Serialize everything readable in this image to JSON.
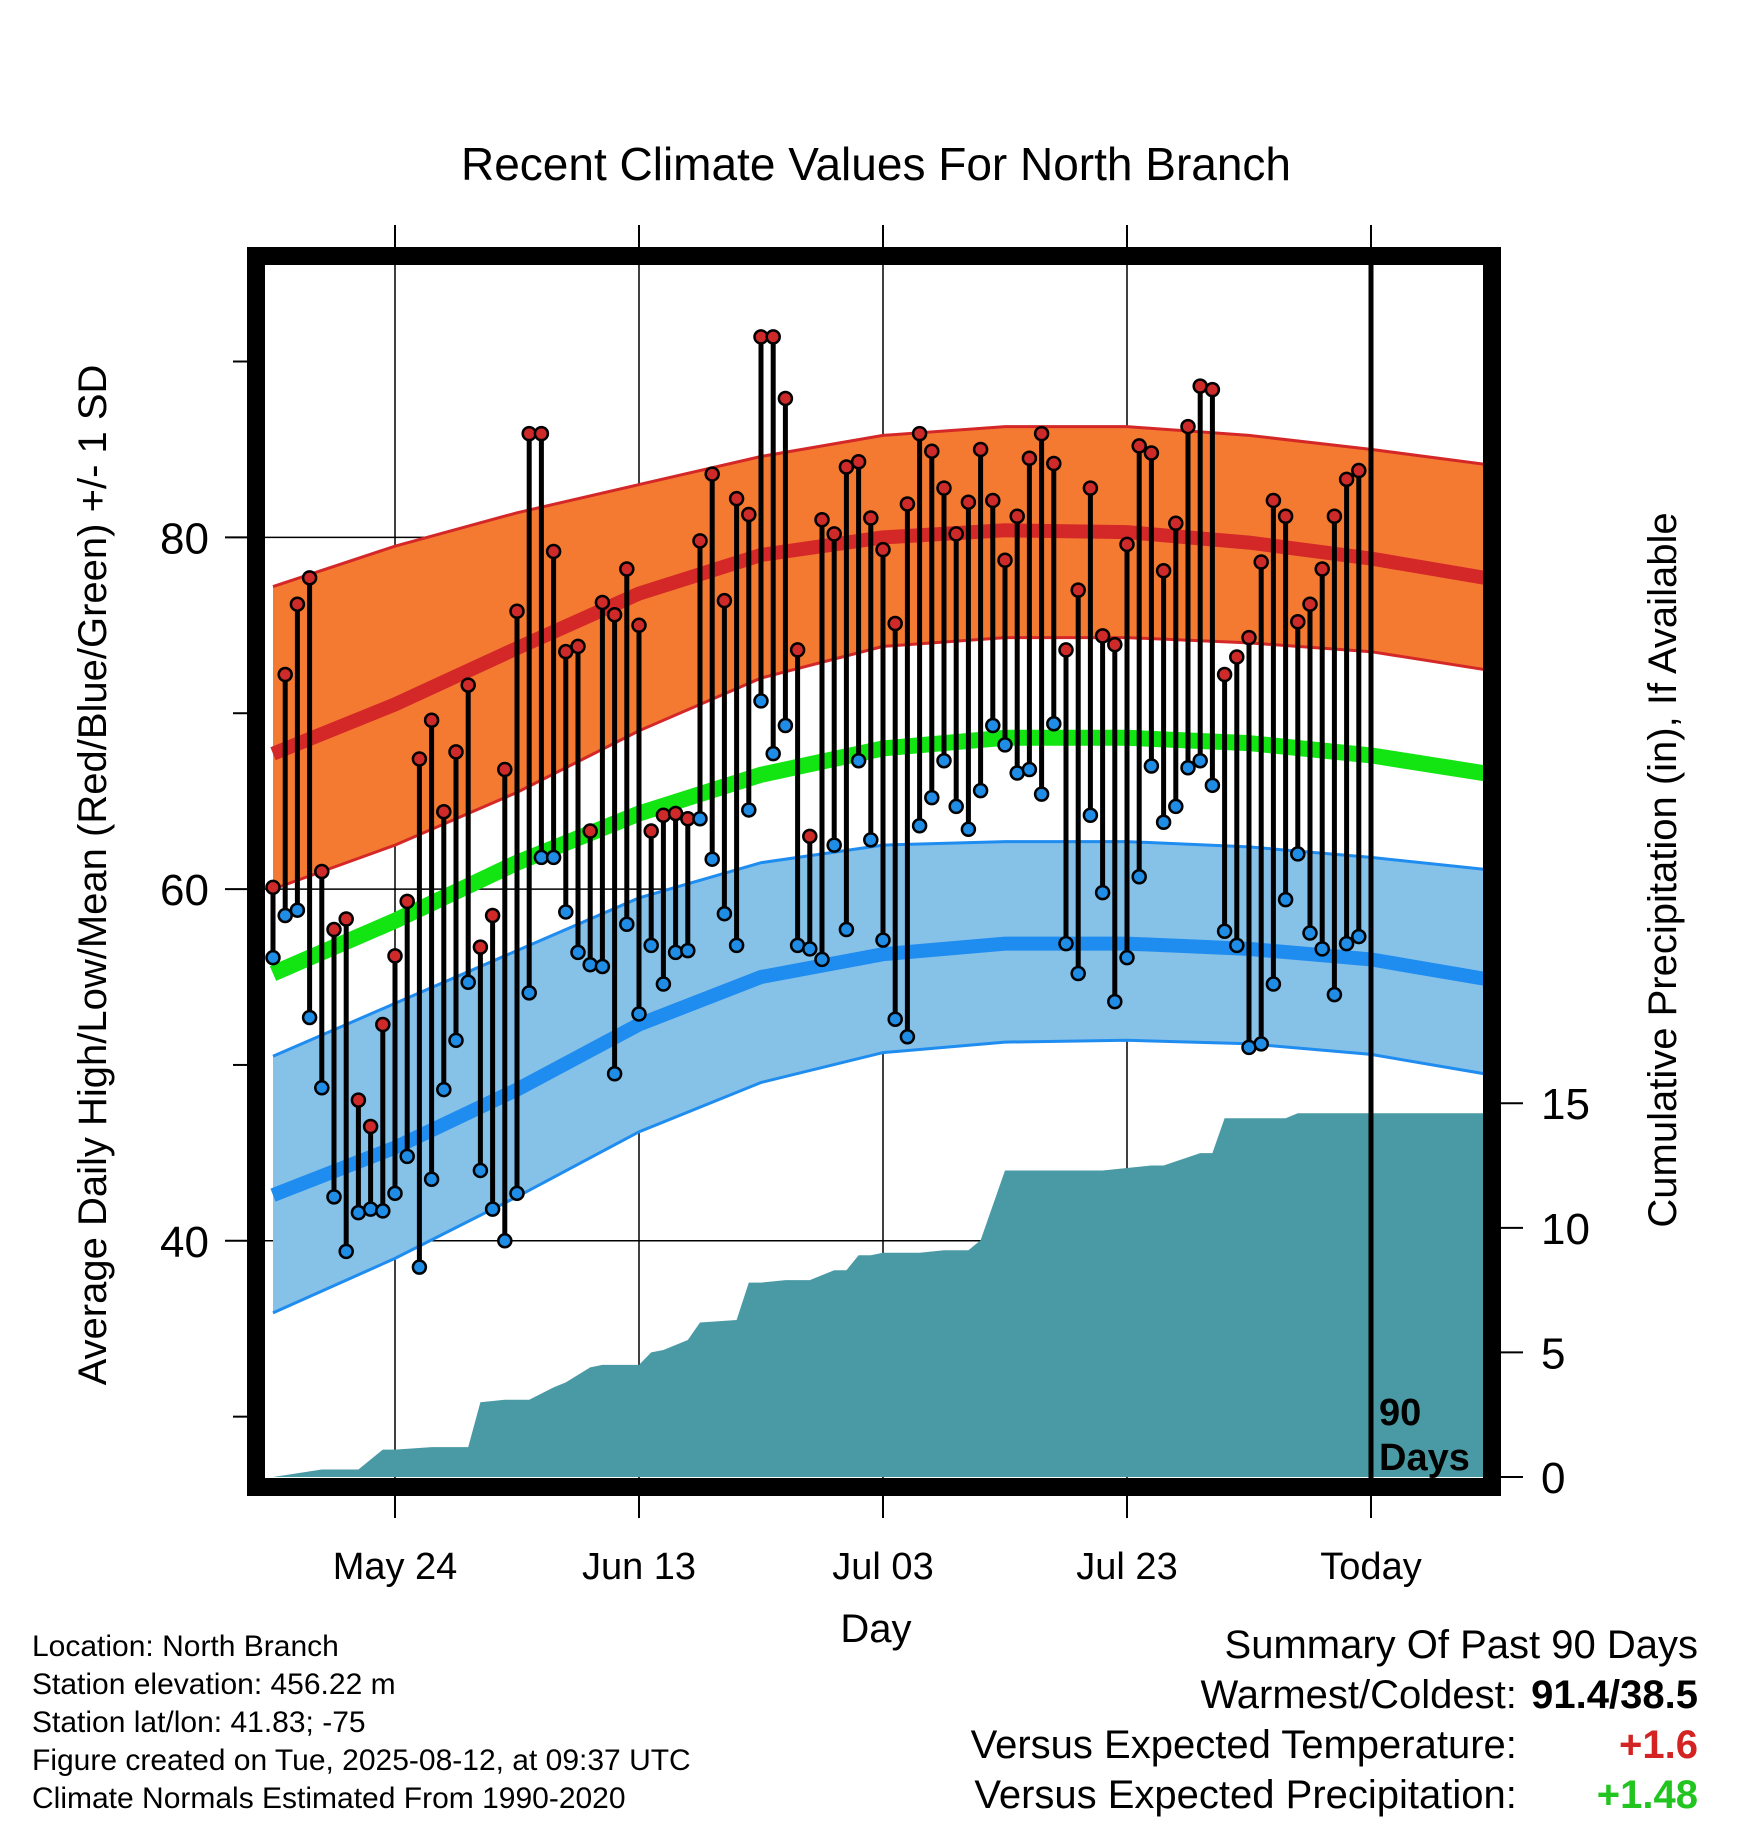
{
  "chart_data": {
    "type": "line",
    "title": "Recent Climate Values For North Branch",
    "xlabel": "Day",
    "ylabel": "Average Daily High/Low/Mean (Red/Blue/Green) +/- 1 SD",
    "y2label": "Cumulative Precipitation (in), If Available",
    "ylim": [
      26,
      96
    ],
    "y2lim": [
      -0.4,
      49
    ],
    "yticks": [
      "40",
      "60",
      "80"
    ],
    "y2ticks": [
      "0",
      "5",
      "10",
      "15"
    ],
    "xlim": [
      -10,
      91
    ],
    "xticks": [
      {
        "day": 0,
        "label": "May 24"
      },
      {
        "day": 20,
        "label": "Jun 13"
      },
      {
        "day": 40,
        "label": "Jul 03"
      },
      {
        "day": 60,
        "label": "Jul 23"
      },
      {
        "day": 80,
        "label": "Today"
      }
    ],
    "today_day": 80,
    "today_annotation": "90 Days",
    "grid": true,
    "colors": {
      "high_band": "#f47a32",
      "high_mean": "#d42828",
      "low_band": "#86c1e8",
      "low_mean": "#1f8cf0",
      "mean_line": "#12e512",
      "precip": "#4a9aa5",
      "high_marker": "#cf2a2a",
      "low_marker": "#1f8ce6"
    },
    "normals": {
      "x": [
        -10,
        0,
        10,
        20,
        30,
        40,
        50,
        60,
        70,
        80,
        91
      ],
      "high_mean": [
        67.7,
        70.5,
        73.7,
        76.8,
        79.0,
        80.0,
        80.4,
        80.3,
        79.7,
        78.8,
        77.5
      ],
      "high_upper": [
        77.2,
        79.5,
        81.4,
        83.0,
        84.6,
        85.8,
        86.3,
        86.3,
        85.8,
        85.0,
        84.0
      ],
      "high_lower": [
        60.0,
        62.5,
        65.5,
        69.0,
        72.0,
        73.8,
        74.3,
        74.3,
        74.0,
        73.5,
        72.3
      ],
      "mean_line": [
        55.2,
        58.2,
        61.5,
        64.3,
        66.5,
        68.0,
        68.6,
        68.6,
        68.3,
        67.6,
        66.4
      ],
      "low_mean": [
        42.6,
        45.3,
        48.6,
        52.3,
        55.0,
        56.3,
        56.9,
        56.9,
        56.6,
        56.0,
        54.7
      ],
      "low_upper": [
        50.5,
        53.5,
        56.5,
        59.5,
        61.5,
        62.5,
        62.7,
        62.7,
        62.4,
        61.8,
        61.0
      ],
      "low_lower": [
        35.9,
        39.0,
        42.5,
        46.2,
        49.0,
        50.7,
        51.3,
        51.4,
        51.2,
        50.6,
        49.3
      ]
    },
    "high_series": [
      60.1,
      72.2,
      76.2,
      77.7,
      61.0,
      57.7,
      58.3,
      48.0,
      46.5,
      52.3,
      56.2,
      59.3,
      67.4,
      69.6,
      64.4,
      67.8,
      71.6,
      56.7,
      58.5,
      66.8,
      75.8,
      85.9,
      85.9,
      79.2,
      73.5,
      73.8,
      63.3,
      76.3,
      75.6,
      78.2,
      75.0,
      63.3,
      64.2,
      64.3,
      64.0,
      79.8,
      83.6,
      76.4,
      82.2,
      81.3,
      91.4,
      91.4,
      87.9,
      73.6,
      63.0,
      81.0,
      80.2,
      84.0,
      84.3,
      81.1,
      79.3,
      75.1,
      81.9,
      85.9,
      84.9,
      82.8,
      80.2,
      82.0,
      85.0,
      82.1,
      78.7,
      81.2,
      84.5,
      85.9,
      84.2,
      73.6,
      77.0,
      82.8,
      74.4,
      73.9,
      79.6,
      85.2,
      84.8,
      78.1,
      80.8,
      86.3,
      88.6,
      88.4,
      72.2,
      73.2,
      74.3,
      78.6,
      82.1,
      81.2,
      75.2,
      76.2,
      78.2,
      81.2,
      83.3,
      83.8
    ],
    "low_series": [
      56.1,
      58.5,
      58.8,
      52.7,
      48.7,
      42.5,
      39.4,
      41.6,
      41.8,
      41.7,
      42.7,
      44.8,
      38.5,
      43.5,
      48.6,
      51.4,
      54.7,
      44.0,
      41.8,
      40.0,
      42.7,
      54.1,
      61.8,
      61.8,
      58.7,
      56.4,
      55.7,
      55.6,
      49.5,
      58.0,
      52.9,
      56.8,
      54.6,
      56.4,
      56.5,
      64.0,
      61.7,
      58.6,
      56.8,
      64.5,
      70.7,
      67.7,
      69.3,
      56.8,
      56.6,
      56.0,
      62.5,
      57.7,
      67.3,
      62.8,
      57.1,
      52.6,
      51.6,
      63.6,
      65.2,
      67.3,
      64.7,
      63.4,
      65.6,
      69.3,
      68.2,
      66.6,
      66.8,
      65.4,
      69.4,
      56.9,
      55.2,
      64.2,
      59.8,
      53.6,
      56.1,
      60.7,
      67.0,
      63.8,
      64.7,
      66.9,
      67.3,
      65.9,
      57.6,
      56.8,
      51.0,
      51.2,
      54.6,
      59.4,
      62.0,
      57.5,
      56.6,
      54.0,
      56.9,
      57.3
    ],
    "precip_cumulative": {
      "x": [
        -10,
        -6,
        -3,
        -1,
        0,
        3,
        6,
        7,
        9,
        11,
        13,
        14,
        15,
        16,
        17,
        18,
        20,
        21,
        22,
        24,
        25,
        28,
        29,
        30,
        32,
        34,
        36,
        37,
        38,
        39,
        40,
        43,
        45,
        47,
        48,
        50,
        53,
        54,
        55,
        56,
        57,
        58,
        60,
        62,
        63,
        66,
        67,
        68,
        69,
        70,
        72,
        73,
        74,
        76,
        78,
        91
      ],
      "y": [
        0,
        0.3,
        0.3,
        1.1,
        1.1,
        1.2,
        1.2,
        3.0,
        3.1,
        3.1,
        3.6,
        3.8,
        4.1,
        4.4,
        4.5,
        4.5,
        4.5,
        5.0,
        5.1,
        5.5,
        6.2,
        6.3,
        7.8,
        7.8,
        7.9,
        7.9,
        8.3,
        8.3,
        8.9,
        8.9,
        9.0,
        9.0,
        9.1,
        9.1,
        9.5,
        12.3,
        12.3,
        12.3,
        12.3,
        12.3,
        12.3,
        12.3,
        12.4,
        12.5,
        12.5,
        13.0,
        13.0,
        14.4,
        14.4,
        14.4,
        14.4,
        14.4,
        14.6,
        14.6,
        14.6,
        14.6
      ]
    }
  },
  "footer": {
    "location": "Location: North Branch",
    "elevation": "Station elevation: 456.22 m",
    "latlon": "Station lat/lon: 41.83; -75",
    "created": "Figure created on Tue, 2025-08-12, at 09:37 UTC",
    "normals": "Climate Normals Estimated From 1990-2020"
  },
  "summary": {
    "heading": "Summary Of Past 90 Days",
    "warm_cold_label": "Warmest/Coldest:",
    "warm_cold_value": "91.4/38.5",
    "temp_label": "Versus Expected Temperature:",
    "temp_value": "+1.6",
    "precip_label": "Versus Expected Precipitation:",
    "precip_value": "+1.48"
  }
}
